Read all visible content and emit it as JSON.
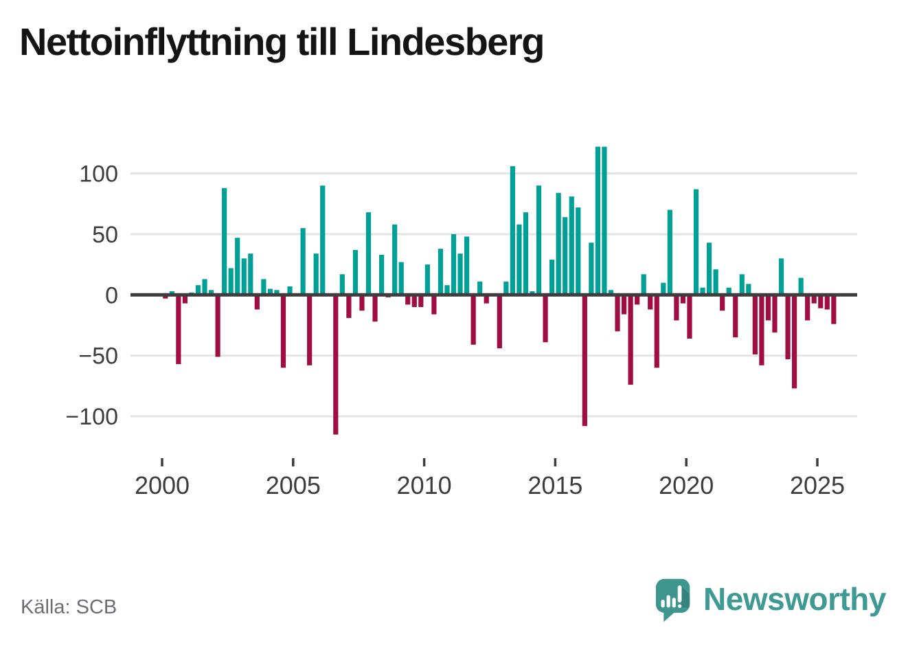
{
  "title": "Nettoinflyttning till Lindesberg",
  "source": "Källa: SCB",
  "logo": {
    "text": "Newsworthy"
  },
  "colors": {
    "positive": "#00a096",
    "negative": "#a00d42",
    "zero_line": "#3d3d3d",
    "gridline": "#e4e4e4",
    "axis_text": "#3d3d3d",
    "title_text": "#141414",
    "source_text": "#6d6d76",
    "logo_teal": "#3f968f",
    "logo_text": "#3f9a94"
  },
  "y_axis": {
    "ticks": [
      100,
      50,
      0,
      -50,
      -100
    ],
    "labels": [
      "100",
      "50",
      "0",
      "−50",
      "−100"
    ]
  },
  "x_axis": {
    "ticks": [
      2000,
      2005,
      2010,
      2015,
      2020,
      2025
    ],
    "labels": [
      "2000",
      "2005",
      "2010",
      "2015",
      "2020",
      "2025"
    ]
  },
  "chart_data": {
    "type": "bar",
    "title": "Nettoinflyttning till Lindesberg",
    "xlabel": "",
    "ylabel": "",
    "ylim": [
      -125,
      132
    ],
    "grid": true,
    "legend": false,
    "frequency": "quarterly",
    "start": "2000-Q1",
    "end": "2025-Q3",
    "x": [
      "2000-Q1",
      "2000-Q2",
      "2000-Q3",
      "2000-Q4",
      "2001-Q1",
      "2001-Q2",
      "2001-Q3",
      "2001-Q4",
      "2002-Q1",
      "2002-Q2",
      "2002-Q3",
      "2002-Q4",
      "2003-Q1",
      "2003-Q2",
      "2003-Q3",
      "2003-Q4",
      "2004-Q1",
      "2004-Q2",
      "2004-Q3",
      "2004-Q4",
      "2005-Q1",
      "2005-Q2",
      "2005-Q3",
      "2005-Q4",
      "2006-Q1",
      "2006-Q2",
      "2006-Q3",
      "2006-Q4",
      "2007-Q1",
      "2007-Q2",
      "2007-Q3",
      "2007-Q4",
      "2008-Q1",
      "2008-Q2",
      "2008-Q3",
      "2008-Q4",
      "2009-Q1",
      "2009-Q2",
      "2009-Q3",
      "2009-Q4",
      "2010-Q1",
      "2010-Q2",
      "2010-Q3",
      "2010-Q4",
      "2011-Q1",
      "2011-Q2",
      "2011-Q3",
      "2011-Q4",
      "2012-Q1",
      "2012-Q2",
      "2012-Q3",
      "2012-Q4",
      "2013-Q1",
      "2013-Q2",
      "2013-Q3",
      "2013-Q4",
      "2014-Q1",
      "2014-Q2",
      "2014-Q3",
      "2014-Q4",
      "2015-Q1",
      "2015-Q2",
      "2015-Q3",
      "2015-Q4",
      "2016-Q1",
      "2016-Q2",
      "2016-Q3",
      "2016-Q4",
      "2017-Q1",
      "2017-Q2",
      "2017-Q3",
      "2017-Q4",
      "2018-Q1",
      "2018-Q2",
      "2018-Q3",
      "2018-Q4",
      "2019-Q1",
      "2019-Q2",
      "2019-Q3",
      "2019-Q4",
      "2020-Q1",
      "2020-Q2",
      "2020-Q3",
      "2020-Q4",
      "2021-Q1",
      "2021-Q2",
      "2021-Q3",
      "2021-Q4",
      "2022-Q1",
      "2022-Q2",
      "2022-Q3",
      "2022-Q4",
      "2023-Q1",
      "2023-Q2",
      "2023-Q3",
      "2023-Q4",
      "2024-Q1",
      "2024-Q2",
      "2024-Q3",
      "2024-Q4",
      "2025-Q1",
      "2025-Q2",
      "2025-Q3"
    ],
    "values": [
      -3,
      3,
      -57,
      -7,
      2,
      8,
      13,
      4,
      -51,
      88,
      22,
      47,
      30,
      34,
      -12,
      13,
      5,
      4,
      -60,
      7,
      0,
      55,
      -58,
      34,
      90,
      0,
      -115,
      17,
      -19,
      37,
      -13,
      68,
      -22,
      33,
      -2,
      58,
      27,
      -8,
      -10,
      -10,
      25,
      -16,
      38,
      8,
      50,
      34,
      48,
      -41,
      11,
      -7,
      0,
      -44,
      11,
      106,
      58,
      68,
      3,
      90,
      -39,
      29,
      84,
      64,
      81,
      72,
      -108,
      43,
      122,
      122,
      4,
      -30,
      -16,
      -74,
      -8,
      17,
      -12,
      -60,
      10,
      70,
      -21,
      -7,
      -36,
      87,
      6,
      43,
      21,
      -13,
      6,
      -35,
      17,
      9,
      -49,
      -58,
      -21,
      -31,
      30,
      -53,
      -77,
      14,
      -21,
      -7,
      -11,
      -12,
      -24
    ]
  }
}
